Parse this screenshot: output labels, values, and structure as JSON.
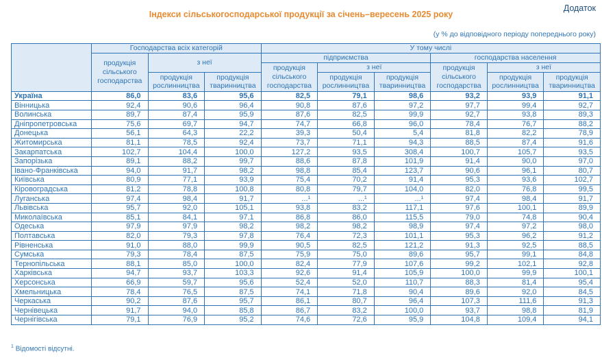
{
  "page": {
    "appendix_label": "Додаток",
    "title": "Індекси сільськогосподарської продукції за січень–вересень 2025 року",
    "subtitle": "(у % до відповідного періоду попереднього року)",
    "footnote_marker": "1",
    "footnote_text": "Відомості відсутні."
  },
  "colors": {
    "title_orange": "#E78B33",
    "text_blue": "#2E74B5",
    "appendix_blue": "#1F4E79",
    "header_fill": "#DEEAF6",
    "border_blue": "#2E74B5"
  },
  "table": {
    "header": {
      "all_categories": "Господарства всіх категорій",
      "including": "У тому числі",
      "enterprises": "підприємства",
      "households": "господарства населення",
      "agri_products": "продукція сільського господарства",
      "of_it": "з неї",
      "crop": "продукція рослинництва",
      "livestock": "продукція тваринництва"
    },
    "rows": [
      {
        "region": "Україна",
        "bold": true,
        "values": [
          "86,0",
          "83,6",
          "95,6",
          "82,5",
          "79,1",
          "98,6",
          "93,2",
          "93,9",
          "91,1"
        ]
      },
      {
        "region": "Вінницька",
        "bold": false,
        "values": [
          "92,4",
          "90,6",
          "96,4",
          "90,8",
          "87,6",
          "97,2",
          "97,7",
          "99,4",
          "92,7"
        ]
      },
      {
        "region": "Волинська",
        "bold": false,
        "values": [
          "89,7",
          "87,4",
          "95,9",
          "87,6",
          "82,5",
          "99,9",
          "92,7",
          "93,8",
          "89,3"
        ]
      },
      {
        "region": "Дніпропетровська",
        "bold": false,
        "values": [
          "75,6",
          "69,7",
          "94,7",
          "74,7",
          "66,8",
          "96,0",
          "78,4",
          "76,7",
          "88,2"
        ]
      },
      {
        "region": "Донецька",
        "bold": false,
        "values": [
          "56,1",
          "64,3",
          "22,2",
          "39,3",
          "50,4",
          "5,4",
          "81,8",
          "82,2",
          "78,9"
        ]
      },
      {
        "region": "Житомирська",
        "bold": false,
        "values": [
          "81,1",
          "78,5",
          "92,4",
          "73,7",
          "71,1",
          "94,3",
          "88,5",
          "87,4",
          "91,6"
        ]
      },
      {
        "region": "Закарпатська",
        "bold": false,
        "values": [
          "102,7",
          "104,4",
          "100,0",
          "127,2",
          "93,5",
          "308,4",
          "100,7",
          "105,7",
          "93,5"
        ]
      },
      {
        "region": "Запорізька",
        "bold": false,
        "values": [
          "89,1",
          "88,2",
          "99,7",
          "88,6",
          "87,8",
          "101,9",
          "91,4",
          "90,0",
          "97,0"
        ]
      },
      {
        "region": "Івано-Франківська",
        "bold": false,
        "values": [
          "94,0",
          "91,7",
          "98,2",
          "98,8",
          "85,4",
          "123,7",
          "90,6",
          "96,1",
          "80,7"
        ]
      },
      {
        "region": "Київська",
        "bold": false,
        "values": [
          "80,9",
          "77,1",
          "93,9",
          "75,4",
          "70,2",
          "91,4",
          "95,3",
          "93,6",
          "102,7"
        ]
      },
      {
        "region": "Кіровоградська",
        "bold": false,
        "values": [
          "81,2",
          "78,8",
          "100,8",
          "80,8",
          "79,7",
          "104,0",
          "82,0",
          "76,8",
          "99,5"
        ]
      },
      {
        "region": "Луганська",
        "bold": false,
        "values": [
          "97,4",
          "98,4",
          "91,7",
          "...¹",
          "...¹",
          "...¹",
          "97,4",
          "98,4",
          "91,7"
        ]
      },
      {
        "region": "Львівська",
        "bold": false,
        "values": [
          "95,7",
          "92,0",
          "105,1",
          "93,8",
          "83,2",
          "117,1",
          "97,6",
          "100,1",
          "89,9"
        ]
      },
      {
        "region": "Миколаївська",
        "bold": false,
        "values": [
          "85,1",
          "84,1",
          "97,1",
          "86,8",
          "86,0",
          "115,5",
          "79,0",
          "74,8",
          "90,4"
        ]
      },
      {
        "region": "Одеська",
        "bold": false,
        "values": [
          "97,9",
          "97,9",
          "98,2",
          "98,2",
          "98,2",
          "98,9",
          "97,4",
          "97,2",
          "98,0"
        ]
      },
      {
        "region": "Полтавська",
        "bold": false,
        "values": [
          "82,0",
          "79,3",
          "97,8",
          "76,4",
          "72,3",
          "101,1",
          "95,3",
          "96,2",
          "91,2"
        ]
      },
      {
        "region": "Рівненська",
        "bold": false,
        "values": [
          "91,0",
          "88,0",
          "99,9",
          "90,5",
          "82,5",
          "121,2",
          "91,3",
          "92,5",
          "88,5"
        ]
      },
      {
        "region": "Сумська",
        "bold": false,
        "values": [
          "79,3",
          "78,4",
          "87,5",
          "75,9",
          "75,0",
          "89,6",
          "95,7",
          "99,1",
          "84,8"
        ]
      },
      {
        "region": "Тернопільська",
        "bold": false,
        "values": [
          "88,1",
          "85,0",
          "100,0",
          "82,4",
          "77,9",
          "107,6",
          "99,2",
          "102,1",
          "92,8"
        ]
      },
      {
        "region": "Харківська",
        "bold": false,
        "values": [
          "94,7",
          "93,7",
          "103,3",
          "92,6",
          "91,4",
          "105,9",
          "100,0",
          "99,9",
          "100,1"
        ]
      },
      {
        "region": "Херсонська",
        "bold": false,
        "values": [
          "66,9",
          "59,7",
          "95,6",
          "52,4",
          "52,0",
          "110,7",
          "88,3",
          "81,4",
          "95,4"
        ]
      },
      {
        "region": "Хмельницька",
        "bold": false,
        "values": [
          "78,4",
          "76,5",
          "87,5",
          "74,1",
          "71,8",
          "90,4",
          "89,6",
          "92,0",
          "84,5"
        ]
      },
      {
        "region": "Черкаська",
        "bold": false,
        "values": [
          "90,2",
          "87,6",
          "95,7",
          "86,1",
          "80,7",
          "96,4",
          "107,3",
          "111,6",
          "91,3"
        ]
      },
      {
        "region": "Чернівецька",
        "bold": false,
        "values": [
          "91,7",
          "94,0",
          "85,8",
          "86,7",
          "83,2",
          "100,0",
          "93,7",
          "98,8",
          "81,9"
        ]
      },
      {
        "region": "Чернігівська",
        "bold": false,
        "values": [
          "79,1",
          "76,9",
          "95,2",
          "74,6",
          "72,6",
          "95,9",
          "104,8",
          "109,4",
          "94,1"
        ]
      }
    ]
  }
}
